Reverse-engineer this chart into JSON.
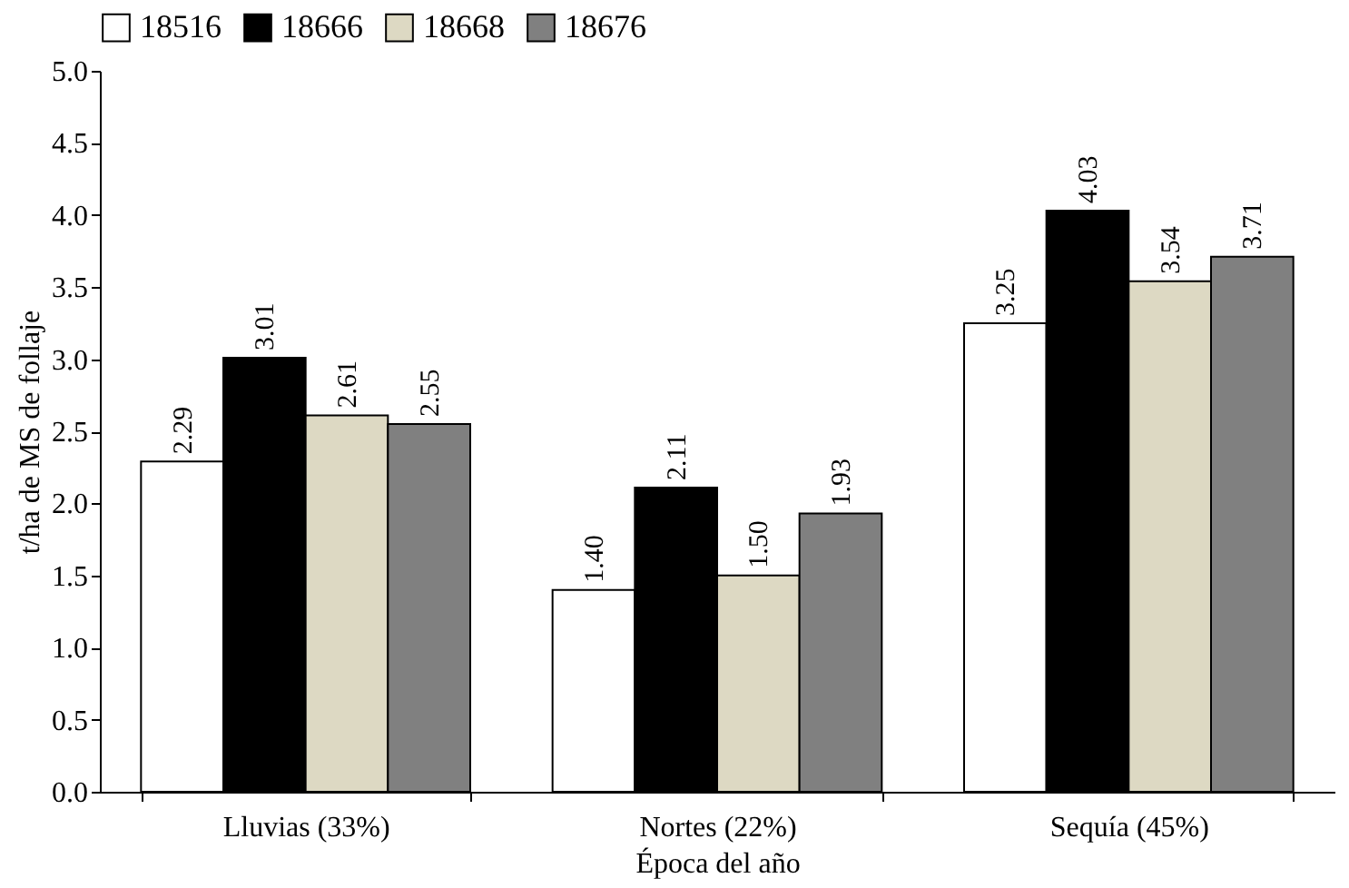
{
  "chart_data": {
    "type": "bar",
    "xlabel": "Época del año",
    "ylabel": "t/ha de MS de follaje",
    "categories": [
      "Lluvias (33%)",
      "Nortes (22%)",
      "Sequía (45%)"
    ],
    "series": [
      {
        "name": "18516",
        "color": "#ffffff",
        "values": [
          2.29,
          1.4,
          3.25
        ],
        "value_labels": [
          "2.29",
          "1.40",
          "3.25"
        ]
      },
      {
        "name": "18666",
        "color": "#000000",
        "values": [
          3.01,
          2.11,
          4.03
        ],
        "value_labels": [
          "3.01",
          "2.11",
          "4.03"
        ]
      },
      {
        "name": "18668",
        "color": "#ddd9c3",
        "values": [
          2.61,
          1.5,
          3.54
        ],
        "value_labels": [
          "2.61",
          "1.50",
          "3.54"
        ]
      },
      {
        "name": "18676",
        "color": "#808080",
        "values": [
          2.55,
          1.93,
          3.71
        ],
        "value_labels": [
          "2.55",
          "1.93",
          "3.71"
        ]
      }
    ],
    "ylim": [
      0,
      5
    ],
    "yticks": [
      {
        "value": 0,
        "label": "0.0"
      },
      {
        "value": 0.5,
        "label": "0.5"
      },
      {
        "value": 1,
        "label": "1.0"
      },
      {
        "value": 1.5,
        "label": "1.5"
      },
      {
        "value": 2,
        "label": "2.0"
      },
      {
        "value": 2.5,
        "label": "2.5"
      },
      {
        "value": 3,
        "label": "3.0"
      },
      {
        "value": 3.5,
        "label": "3.5"
      },
      {
        "value": 4,
        "label": "4.0"
      },
      {
        "value": 4.5,
        "label": "4.5"
      },
      {
        "value": 5,
        "label": "5.0"
      }
    ],
    "legend": "top",
    "grid": false
  }
}
